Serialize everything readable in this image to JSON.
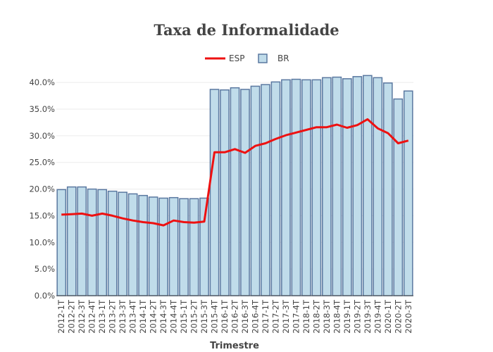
{
  "chart_data": {
    "type": "bar",
    "title": "Taxa de Informalidade",
    "xlabel": "Trimestre",
    "ylabel": "",
    "ylim": [
      0,
      0.42
    ],
    "yticks": [
      0,
      0.05,
      0.1,
      0.15,
      0.2,
      0.25,
      0.3,
      0.35,
      0.4
    ],
    "ytick_labels": [
      "0.0%",
      "5.0%",
      "10.0%",
      "15.0%",
      "20.0%",
      "25.0%",
      "30.0%",
      "35.0%",
      "40.0%"
    ],
    "grid": true,
    "legend_position": "top-center",
    "categories": [
      "2012-1T",
      "2012-2T",
      "2012-3T",
      "2012-4T",
      "2013-1T",
      "2013-2T",
      "2013-3T",
      "2013-4T",
      "2014-1T",
      "2014-2T",
      "2014-3T",
      "2014-4T",
      "2015-1T",
      "2015-2T",
      "2015-3T",
      "2015-4T",
      "2016-1T",
      "2016-2T",
      "2016-3T",
      "2016-4T",
      "2017-1T",
      "2017-2T",
      "2017-3T",
      "2017-4T",
      "2018-1T",
      "2018-2T",
      "2018-3T",
      "2018-4T",
      "2019-1T",
      "2019-2T",
      "2019-3T",
      "2019-4T",
      "2020-1T",
      "2020-2T",
      "2020-3T"
    ],
    "series": [
      {
        "name": "BR",
        "type": "bar",
        "color": "#c0dcea",
        "edge_color": "#5a78a0",
        "values": [
          0.199,
          0.204,
          0.204,
          0.2,
          0.199,
          0.196,
          0.194,
          0.191,
          0.188,
          0.185,
          0.183,
          0.184,
          0.182,
          0.182,
          0.183,
          0.387,
          0.386,
          0.39,
          0.387,
          0.393,
          0.396,
          0.401,
          0.405,
          0.406,
          0.405,
          0.405,
          0.409,
          0.41,
          0.407,
          0.411,
          0.413,
          0.409,
          0.399,
          0.369,
          0.384
        ]
      },
      {
        "name": "ESP",
        "type": "line",
        "color": "#ee1111",
        "values": [
          0.152,
          0.153,
          0.154,
          0.15,
          0.154,
          0.15,
          0.145,
          0.141,
          0.138,
          0.136,
          0.132,
          0.141,
          0.138,
          0.137,
          0.139,
          0.269,
          0.269,
          0.275,
          0.268,
          0.281,
          0.286,
          0.294,
          0.301,
          0.306,
          0.311,
          0.316,
          0.316,
          0.321,
          0.315,
          0.32,
          0.331,
          0.314,
          0.305,
          0.286,
          0.291
        ]
      }
    ]
  }
}
